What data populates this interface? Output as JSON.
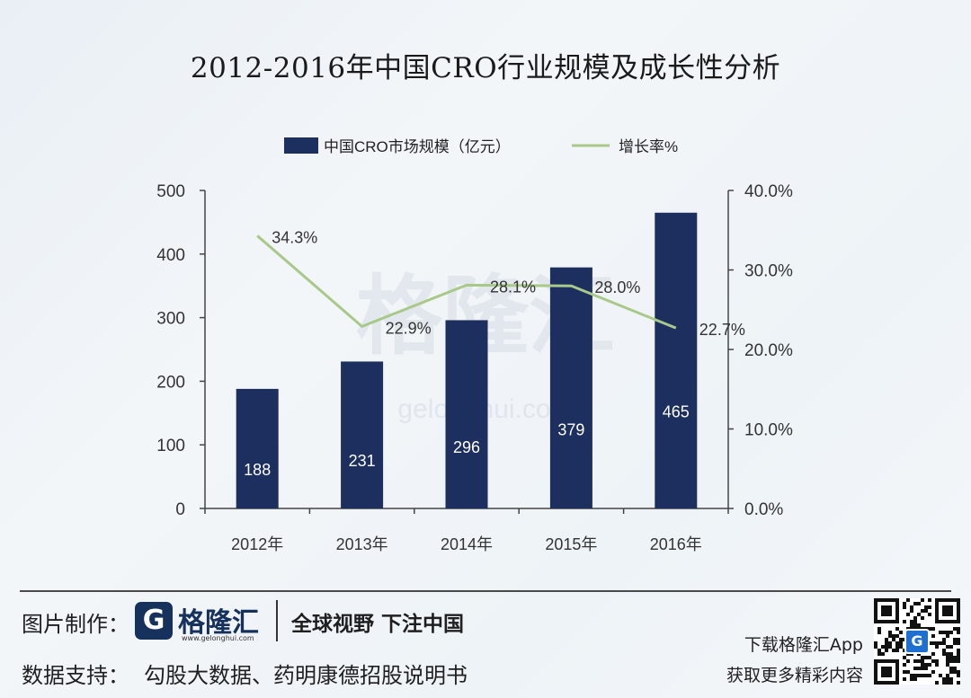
{
  "chart_data": {
    "type": "bar",
    "title": "2012-2016年中国CRO行业规模及成长性分析",
    "categories": [
      "2012年",
      "2013年",
      "2014年",
      "2015年",
      "2016年"
    ],
    "series": [
      {
        "name": "中国CRO市场规模（亿元）",
        "type": "bar",
        "axis": "left",
        "values": [
          188,
          231,
          296,
          379,
          465
        ],
        "data_labels": [
          "188",
          "231",
          "296",
          "379",
          "465"
        ]
      },
      {
        "name": "增长率%",
        "type": "line",
        "axis": "right",
        "values": [
          34.3,
          22.9,
          28.1,
          28.0,
          22.7
        ],
        "data_labels": [
          "34.3%",
          "22.9%",
          "28.1%",
          "28.0%",
          "22.7%"
        ]
      }
    ],
    "y_left": {
      "ylim": [
        0,
        500
      ],
      "ticks": [
        "0",
        "100",
        "200",
        "300",
        "400",
        "500"
      ]
    },
    "y_right": {
      "ylim": [
        0,
        40
      ],
      "ticks": [
        "0.0%",
        "10.0%",
        "20.0%",
        "30.0%",
        "40.0%"
      ]
    },
    "legend_position": "top",
    "grid": false,
    "colors": {
      "bar": "#1d2f5e",
      "line": "#a9c98a"
    }
  },
  "watermark": "格隆汇 gelonghui.com",
  "footer": {
    "credit_label": "图片制作：",
    "brand_name": "格隆汇",
    "brand_url": "www.gelonghui.com",
    "slogan": "全球视野 下注中国",
    "source_label": "数据支持：",
    "source_text": "勾股大数据、药明康德招股说明书",
    "app_line1": "下载格隆汇App",
    "app_line2": "获取更多精彩内容"
  }
}
